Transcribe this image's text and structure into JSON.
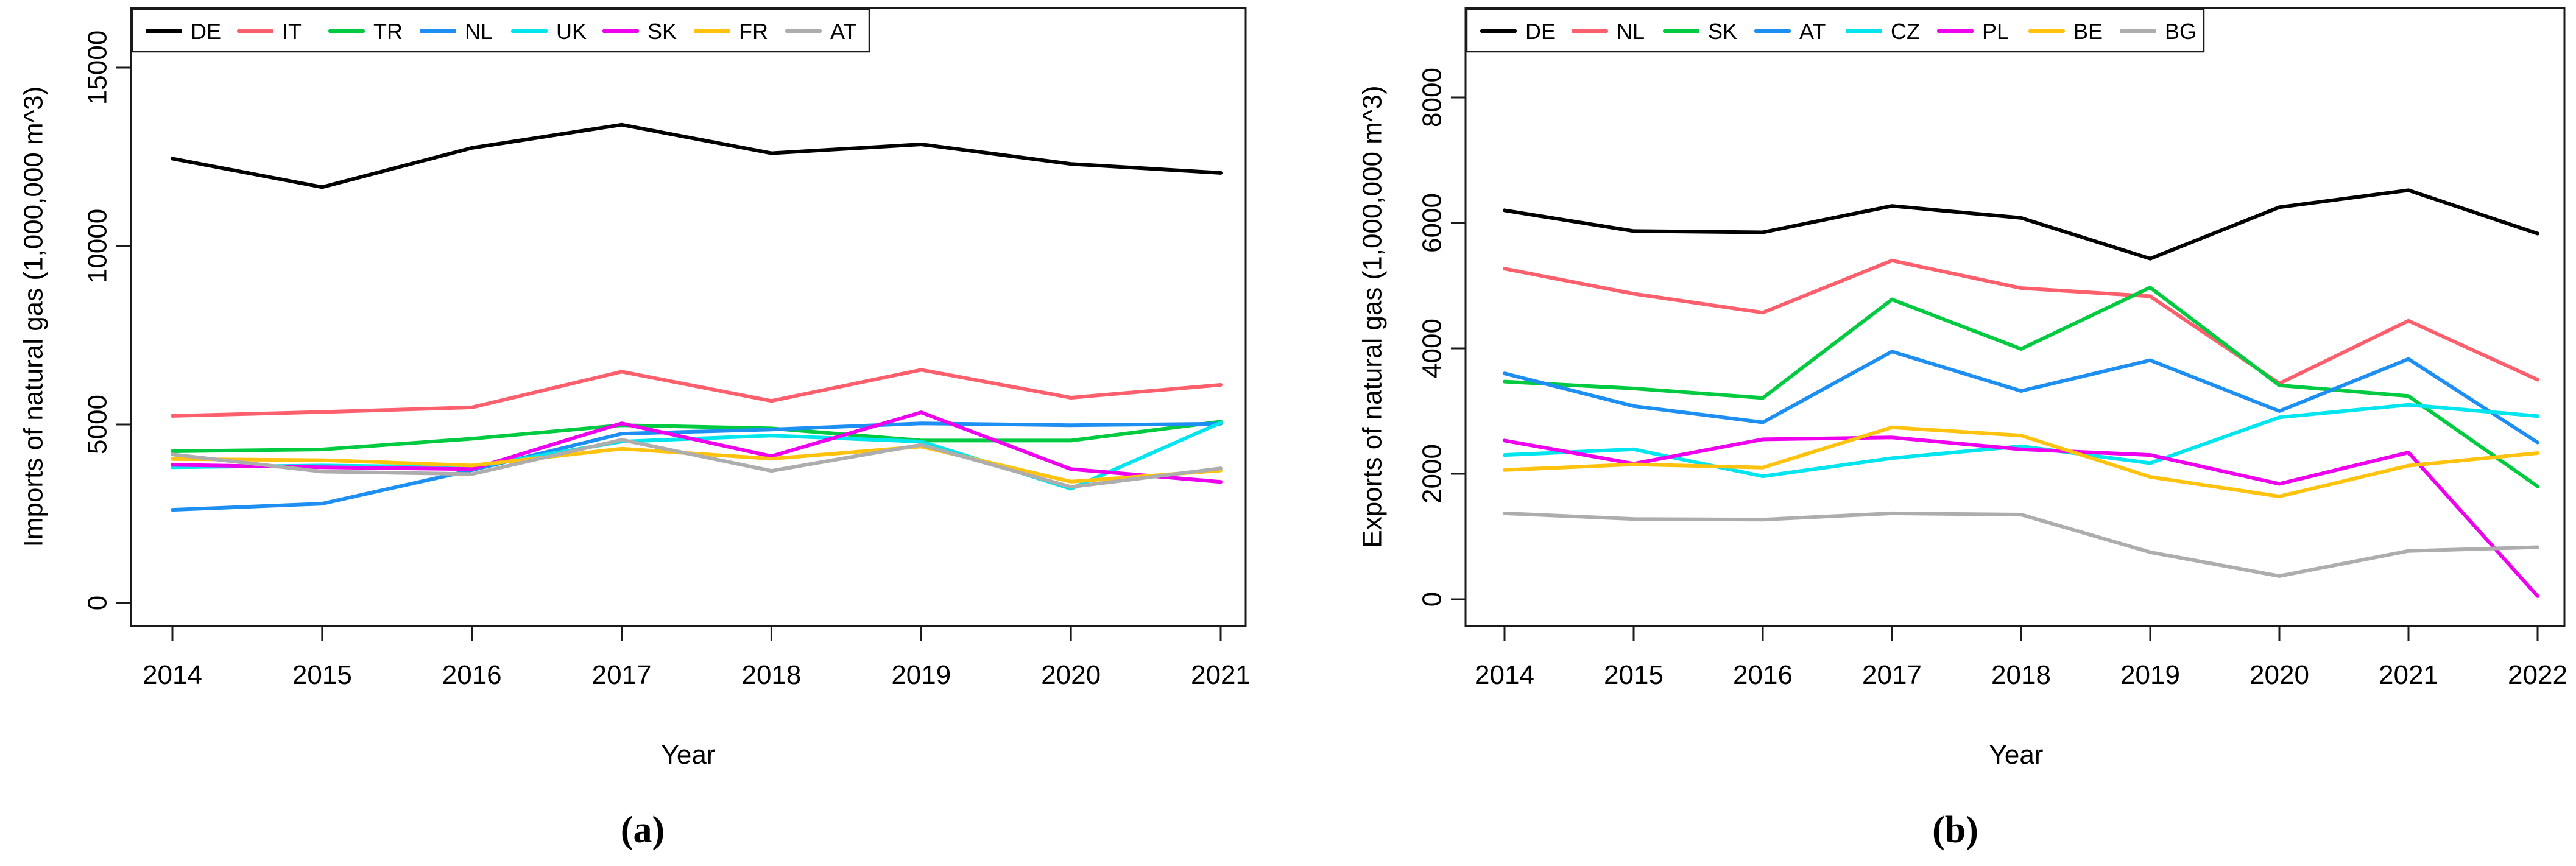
{
  "figure": {
    "captions": {
      "a": "(a)",
      "b": "(b)"
    }
  },
  "chart_data": [
    {
      "id": "imports",
      "type": "line",
      "title": "",
      "xlabel": "Year",
      "ylabel": "Imports of natural gas (1,000,000 m^3)",
      "x": [
        "2014",
        "2015",
        "2016",
        "2017",
        "2018",
        "2019",
        "2020",
        "2021"
      ],
      "y_ticks": [
        0,
        5000,
        10000,
        15000
      ],
      "ylim": [
        -650,
        16670
      ],
      "grid": false,
      "legend_position": "top-left-inside",
      "legend": [
        "DE",
        "IT",
        "TR",
        "NL",
        "UK",
        "SK",
        "FR",
        "AT"
      ],
      "series": [
        {
          "name": "DE",
          "color": "#000000",
          "values": [
            12450,
            11650,
            12750,
            13400,
            12600,
            12850,
            12300,
            12050
          ]
        },
        {
          "name": "IT",
          "color": "#FD5F6D",
          "values": [
            5240,
            5350,
            5480,
            6480,
            5660,
            6530,
            5750,
            6110
          ]
        },
        {
          "name": "TR",
          "color": "#00CB40",
          "values": [
            4250,
            4300,
            4600,
            4980,
            4890,
            4550,
            4550,
            5080
          ]
        },
        {
          "name": "NL",
          "color": "#1E8FF2",
          "values": [
            2610,
            2780,
            3720,
            4740,
            4860,
            5030,
            4980,
            5020
          ]
        },
        {
          "name": "UK",
          "color": "#00E5EE",
          "values": [
            3800,
            3850,
            3800,
            4520,
            4690,
            4520,
            3200,
            5050
          ]
        },
        {
          "name": "SK",
          "color": "#EE00EE",
          "values": [
            3870,
            3800,
            3750,
            5030,
            4110,
            5340,
            3750,
            3390
          ]
        },
        {
          "name": "FR",
          "color": "#FFC30F",
          "values": [
            4030,
            4000,
            3850,
            4320,
            4040,
            4380,
            3400,
            3710
          ]
        },
        {
          "name": "AT",
          "color": "#ADADAD",
          "values": [
            4160,
            3680,
            3610,
            4570,
            3700,
            4430,
            3250,
            3770
          ]
        }
      ]
    },
    {
      "id": "exports",
      "type": "line",
      "title": "",
      "xlabel": "Year",
      "ylabel": "Exports of natural gas (1,000,000 m^3)",
      "x": [
        "2014",
        "2015",
        "2016",
        "2017",
        "2018",
        "2019",
        "2020",
        "2021",
        "2022"
      ],
      "y_ticks": [
        0,
        2000,
        4000,
        6000,
        8000
      ],
      "ylim": [
        -430,
        9430
      ],
      "grid": false,
      "legend_position": "top-left-inside",
      "legend": [
        "DE",
        "NL",
        "SK",
        "AT",
        "CZ",
        "PL",
        "BE",
        "BG"
      ],
      "series": [
        {
          "name": "DE",
          "color": "#000000",
          "values": [
            6200,
            5870,
            5850,
            6270,
            6080,
            5430,
            6250,
            6520,
            5830
          ]
        },
        {
          "name": "NL",
          "color": "#FD5F6D",
          "values": [
            5270,
            4870,
            4570,
            5400,
            4960,
            4830,
            3440,
            4440,
            3500
          ]
        },
        {
          "name": "SK",
          "color": "#00CB40",
          "values": [
            3470,
            3360,
            3210,
            4780,
            3990,
            4970,
            3410,
            3240,
            1800
          ]
        },
        {
          "name": "AT",
          "color": "#1E8FF2",
          "values": [
            3600,
            3080,
            2820,
            3950,
            3320,
            3810,
            3000,
            3830,
            2500
          ]
        },
        {
          "name": "CZ",
          "color": "#00E5EE",
          "values": [
            2300,
            2390,
            1960,
            2250,
            2440,
            2170,
            2900,
            3100,
            2920
          ]
        },
        {
          "name": "PL",
          "color": "#EE00EE",
          "values": [
            2530,
            2160,
            2550,
            2580,
            2390,
            2300,
            1840,
            2340,
            50
          ]
        },
        {
          "name": "BE",
          "color": "#FFC30F",
          "values": [
            2060,
            2150,
            2100,
            2740,
            2610,
            1950,
            1640,
            2130,
            2330
          ]
        },
        {
          "name": "BG",
          "color": "#ADADAD",
          "values": [
            1370,
            1280,
            1270,
            1370,
            1350,
            750,
            370,
            770,
            830
          ]
        }
      ]
    }
  ],
  "style": {
    "axis_color": "#1a1a1a",
    "background": "#ffffff"
  }
}
